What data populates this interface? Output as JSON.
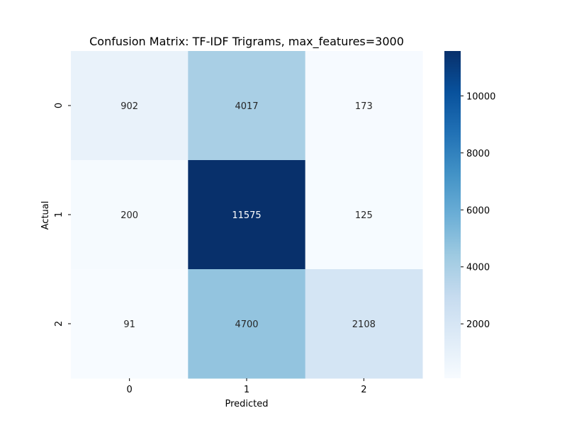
{
  "chart_data": {
    "type": "heatmap",
    "title": "Confusion Matrix: TF-IDF Trigrams, max_features=3000",
    "xlabel": "Predicted",
    "ylabel": "Actual",
    "x_categories": [
      "0",
      "1",
      "2"
    ],
    "y_categories": [
      "0",
      "1",
      "2"
    ],
    "values": [
      [
        902,
        4017,
        173
      ],
      [
        200,
        11575,
        125
      ],
      [
        91,
        4700,
        2108
      ]
    ],
    "colormap": "Blues",
    "colorbar": {
      "min": 91,
      "max": 11575,
      "ticks": [
        2000,
        4000,
        6000,
        8000,
        10000
      ],
      "tick_labels": [
        "2000",
        "4000",
        "6000",
        "8000",
        "10000"
      ]
    },
    "colors": {
      "low": "#f7fbff",
      "high": "#08306b"
    }
  }
}
